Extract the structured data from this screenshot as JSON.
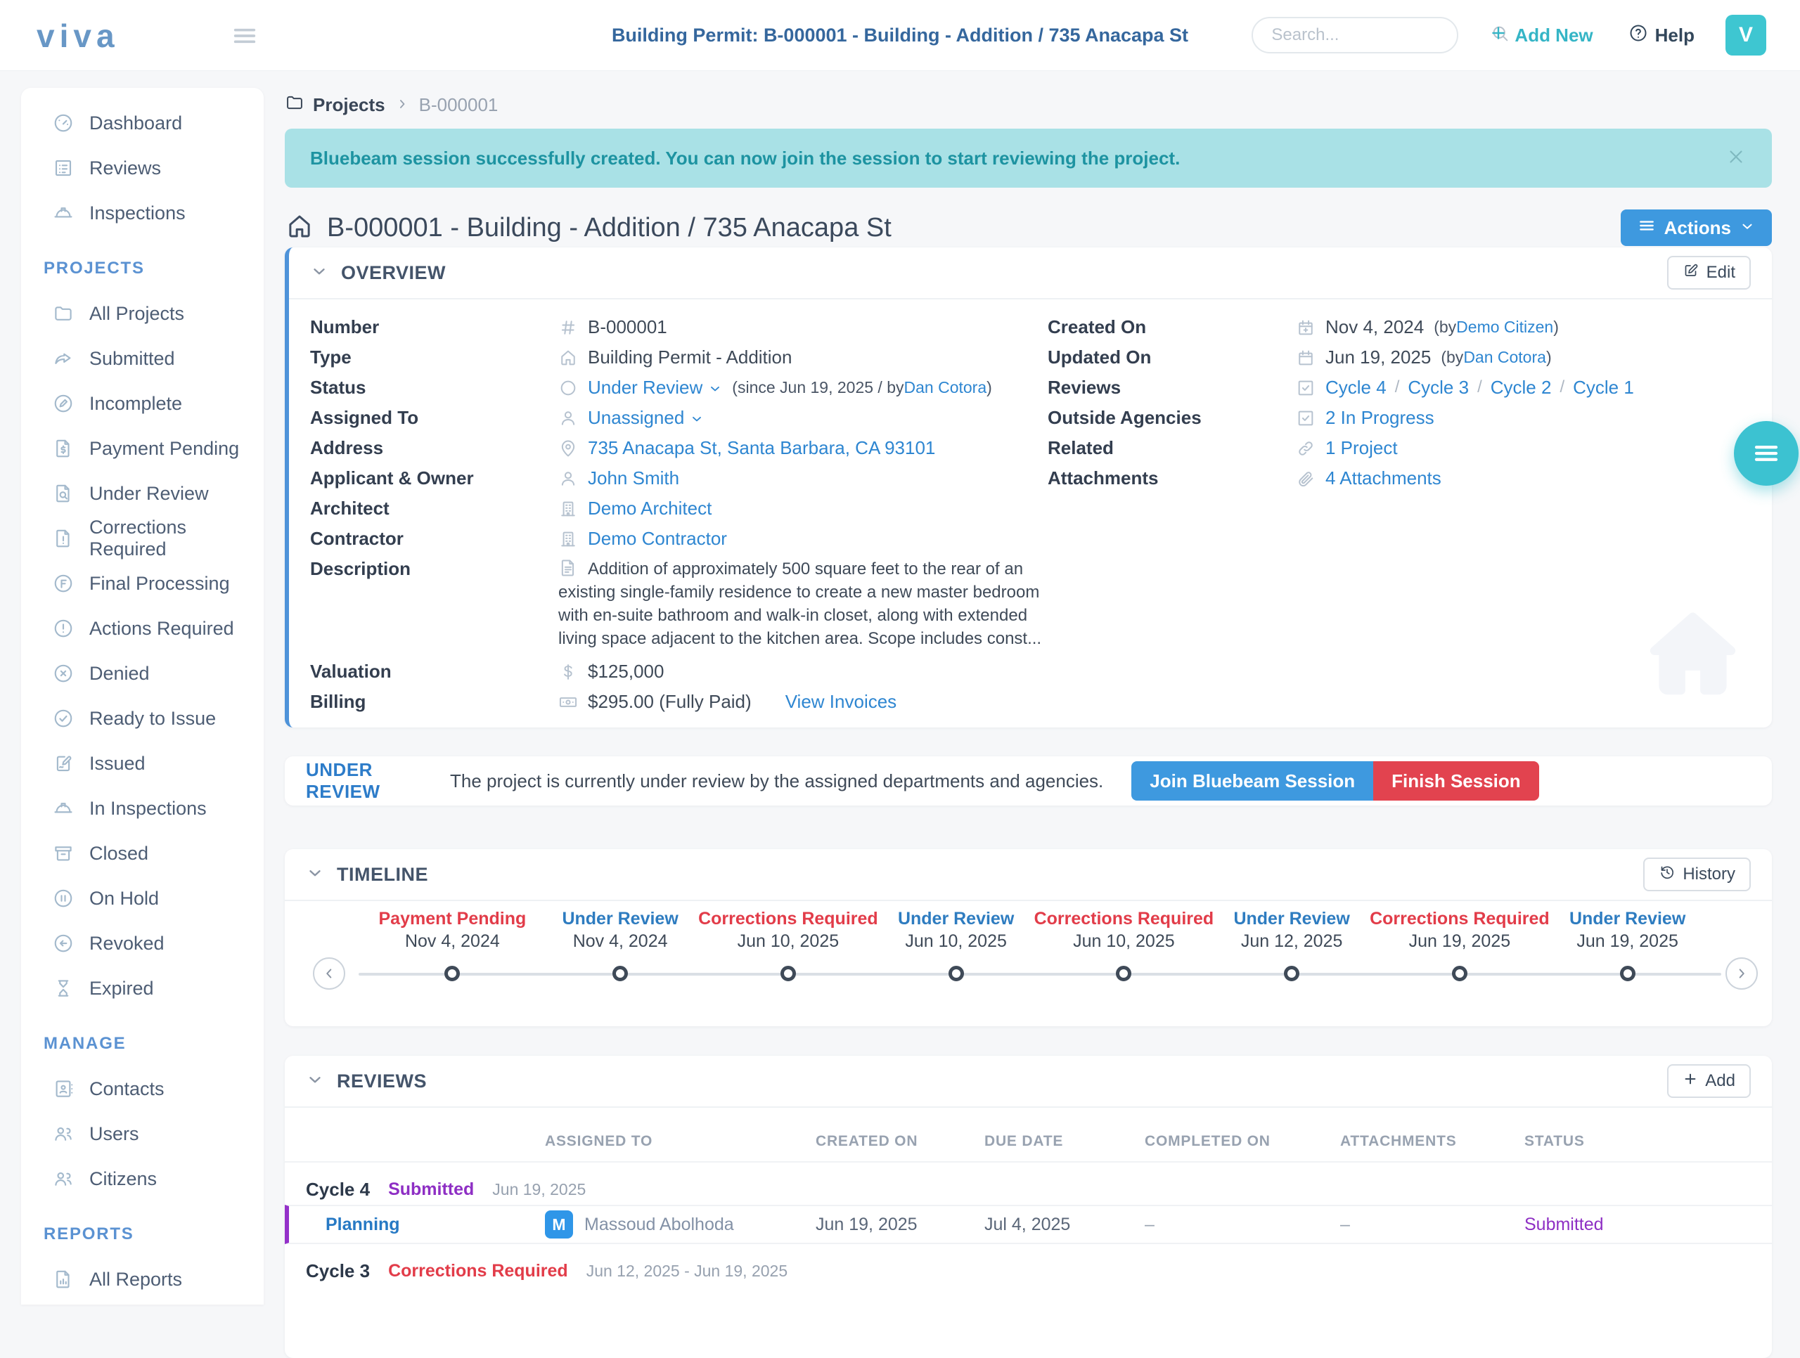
{
  "header": {
    "logo": "viva",
    "title": "Building Permit: B-000001 - Building - Addition / 735 Anacapa St",
    "search_placeholder": "Search...",
    "add_new_label": "Add New",
    "help_label": "Help",
    "avatar_initial": "V"
  },
  "sidebar": {
    "sections": [
      {
        "heading": null,
        "items": [
          {
            "label": "Dashboard",
            "icon": "gauge"
          },
          {
            "label": "Reviews",
            "icon": "checklist"
          },
          {
            "label": "Inspections",
            "icon": "hardhat"
          }
        ]
      },
      {
        "heading": "PROJECTS",
        "items": [
          {
            "label": "All Projects",
            "icon": "folder"
          },
          {
            "label": "Submitted",
            "icon": "share"
          },
          {
            "label": "Incomplete",
            "icon": "pencil-circle"
          },
          {
            "label": "Payment Pending",
            "icon": "invoice"
          },
          {
            "label": "Under Review",
            "icon": "file-search"
          },
          {
            "label": "Corrections Required",
            "icon": "file-alert"
          },
          {
            "label": "Final Processing",
            "icon": "f-circle"
          },
          {
            "label": "Actions Required",
            "icon": "alert-circle"
          },
          {
            "label": "Denied",
            "icon": "x-circle"
          },
          {
            "label": "Ready to Issue",
            "icon": "check-circle"
          },
          {
            "label": "Issued",
            "icon": "signature"
          },
          {
            "label": "In Inspections",
            "icon": "hardhat"
          },
          {
            "label": "Closed",
            "icon": "archive"
          },
          {
            "label": "On Hold",
            "icon": "pause-circle"
          },
          {
            "label": "Revoked",
            "icon": "arrow-left-circle"
          },
          {
            "label": "Expired",
            "icon": "hourglass"
          }
        ]
      },
      {
        "heading": "MANAGE",
        "items": [
          {
            "label": "Contacts",
            "icon": "contact-card"
          },
          {
            "label": "Users",
            "icon": "users"
          },
          {
            "label": "Citizens",
            "icon": "users"
          }
        ]
      },
      {
        "heading": "REPORTS",
        "items": [
          {
            "label": "All Reports",
            "icon": "report"
          }
        ]
      }
    ]
  },
  "breadcrumb": {
    "root": "Projects",
    "current": "B-000001"
  },
  "banner": {
    "text": "Bluebeam session successfully created. You can now join the session to start reviewing the project."
  },
  "page": {
    "title": "B-000001 - Building - Addition / 735 Anacapa St",
    "actions_label": "Actions"
  },
  "overview": {
    "title": "OVERVIEW",
    "edit_label": "Edit",
    "left_fields": [
      {
        "label": "Number",
        "icon": "hash",
        "parts": [
          {
            "text": "B-000001",
            "style": "value"
          }
        ]
      },
      {
        "label": "Type",
        "icon": "home",
        "parts": [
          {
            "text": "Building Permit - Addition",
            "style": "value"
          }
        ]
      },
      {
        "label": "Status",
        "icon": "circle",
        "parts": [
          {
            "text": "Under Review",
            "style": "link-caret"
          },
          {
            "text": "(since Jun 19, 2025 / by ",
            "style": "meta",
            "ml": true
          },
          {
            "text": "Dan Cotora",
            "style": "meta-link"
          },
          {
            "text": ")",
            "style": "meta"
          }
        ]
      },
      {
        "label": "Assigned To",
        "icon": "user",
        "parts": [
          {
            "text": "Unassigned",
            "style": "link-caret"
          }
        ]
      },
      {
        "label": "Address",
        "icon": "pin",
        "parts": [
          {
            "text": "735 Anacapa St, Santa Barbara, CA 93101",
            "style": "link"
          }
        ]
      },
      {
        "label": "Applicant & Owner",
        "icon": "user",
        "parts": [
          {
            "text": "John Smith",
            "style": "link"
          }
        ]
      },
      {
        "label": "Architect",
        "icon": "building",
        "parts": [
          {
            "text": "Demo Architect",
            "style": "link"
          }
        ]
      },
      {
        "label": "Contractor",
        "icon": "building",
        "parts": [
          {
            "text": "Demo Contractor",
            "style": "link"
          }
        ]
      },
      {
        "label": "Description",
        "icon": "doc",
        "multiline": true,
        "parts": [
          {
            "text": "Addition of approximately 500 square feet to the rear of an existing single-family residence to create a new master bedroom with en-suite bathroom and walk-in closet, along with extended living space adjacent to the kitchen area. Scope includes const...",
            "style": "value"
          }
        ]
      },
      {
        "label": "Valuation",
        "icon": "dollar",
        "parts": [
          {
            "text": "$125,000",
            "style": "value"
          }
        ]
      },
      {
        "label": "Billing",
        "icon": "banknote",
        "parts": [
          {
            "text": "$295.00 (Fully Paid)",
            "style": "value"
          },
          {
            "text": "View Invoices",
            "style": "link-spaced"
          }
        ]
      }
    ],
    "right_fields": [
      {
        "label": "Created On",
        "icon": "calendar-plus",
        "parts": [
          {
            "text": "Nov 4, 2024",
            "style": "value"
          },
          {
            "text": "(by ",
            "style": "meta",
            "ml": true
          },
          {
            "text": "Demo Citizen",
            "style": "meta-link"
          },
          {
            "text": ")",
            "style": "meta"
          }
        ]
      },
      {
        "label": "Updated On",
        "icon": "calendar",
        "parts": [
          {
            "text": "Jun 19, 2025",
            "style": "value"
          },
          {
            "text": "(by ",
            "style": "meta",
            "ml": true
          },
          {
            "text": "Dan Cotora",
            "style": "meta-link"
          },
          {
            "text": ")",
            "style": "meta"
          }
        ]
      },
      {
        "label": "Reviews",
        "icon": "check-square",
        "parts": [
          {
            "text": "Cycle 4",
            "style": "link"
          },
          {
            "text": "/",
            "style": "sep"
          },
          {
            "text": "Cycle 3",
            "style": "link"
          },
          {
            "text": "/",
            "style": "sep"
          },
          {
            "text": "Cycle 2",
            "style": "link"
          },
          {
            "text": "/",
            "style": "sep"
          },
          {
            "text": "Cycle 1",
            "style": "link"
          }
        ]
      },
      {
        "label": "Outside Agencies",
        "icon": "check-square",
        "parts": [
          {
            "text": "2 In Progress",
            "style": "link"
          }
        ]
      },
      {
        "label": "Related",
        "icon": "link",
        "parts": [
          {
            "text": "1 Project",
            "style": "link"
          }
        ]
      },
      {
        "label": "Attachments",
        "icon": "paperclip",
        "parts": [
          {
            "text": "4 Attachments",
            "style": "link"
          }
        ]
      }
    ]
  },
  "status_bar": {
    "label": "UNDER REVIEW",
    "message": "The project is currently under review by the assigned departments and agencies.",
    "primary_button": "Join Bluebeam Session",
    "danger_button": "Finish Session"
  },
  "timeline": {
    "title": "TIMELINE",
    "history_label": "History",
    "events": [
      {
        "status": "Payment Pending",
        "date": "Nov 4, 2024",
        "color": "red"
      },
      {
        "status": "Under Review",
        "date": "Nov 4, 2024",
        "color": "blue"
      },
      {
        "status": "Corrections Required",
        "date": "Jun 10, 2025",
        "color": "red"
      },
      {
        "status": "Under Review",
        "date": "Jun 10, 2025",
        "color": "blue"
      },
      {
        "status": "Corrections Required",
        "date": "Jun 10, 2025",
        "color": "red"
      },
      {
        "status": "Under Review",
        "date": "Jun 12, 2025",
        "color": "blue"
      },
      {
        "status": "Corrections Required",
        "date": "Jun 19, 2025",
        "color": "red"
      },
      {
        "status": "Under Review",
        "date": "Jun 19, 2025",
        "color": "blue"
      }
    ]
  },
  "reviews": {
    "title": "REVIEWS",
    "add_label": "Add",
    "columns": [
      "ASSIGNED TO",
      "CREATED ON",
      "DUE DATE",
      "COMPLETED ON",
      "ATTACHMENTS",
      "STATUS"
    ],
    "groups": [
      {
        "cycle": "Cycle 4",
        "status": "Submitted",
        "status_color": "purple",
        "date_range": "Jun 19, 2025",
        "rows": [
          {
            "department": "Planning",
            "avatar_initial": "M",
            "assignee": "Massoud Abolhoda",
            "created_on": "Jun 19, 2025",
            "due_date": "Jul 4, 2025",
            "completed_on": "–",
            "attachments": "–",
            "status": "Submitted",
            "status_color": "purple"
          }
        ]
      },
      {
        "cycle": "Cycle 3",
        "status": "Corrections Required",
        "status_color": "red",
        "date_range": "Jun 12, 2025 - Jun 19, 2025",
        "rows": []
      }
    ]
  },
  "colors": {
    "accent_blue": "#3e99df",
    "link_blue": "#2e86d1",
    "teal": "#3ec6d1",
    "banner_teal": "#a9e1e6",
    "red": "#e2434f",
    "purple": "#8e2fc4"
  }
}
